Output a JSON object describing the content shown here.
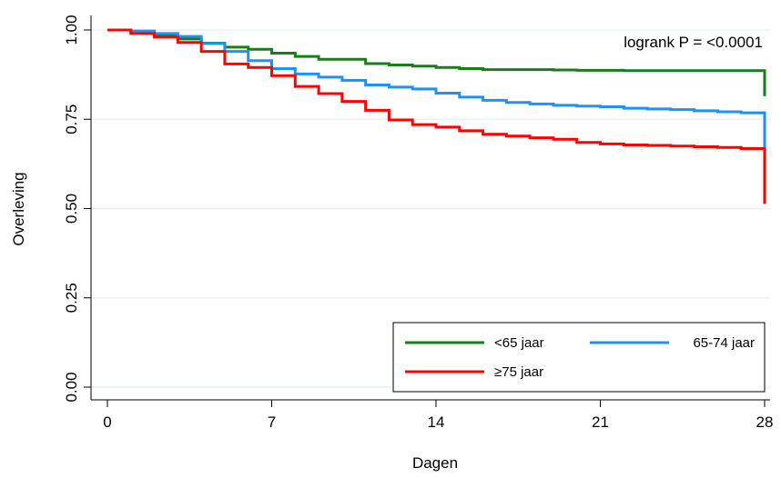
{
  "chart_data": {
    "type": "line",
    "step": true,
    "xlabel": "Dagen",
    "ylabel": "Overleving",
    "xlim": [
      0,
      28
    ],
    "ylim": [
      0,
      1
    ],
    "xticks": [
      0,
      7,
      14,
      21,
      28
    ],
    "xtick_labels": [
      "0",
      "7",
      "14",
      "21",
      "28"
    ],
    "yticks": [
      0,
      0.25,
      0.5,
      0.75,
      1
    ],
    "ytick_labels": [
      "0.00",
      "0.25",
      "0.50",
      "0.75",
      "1.00"
    ],
    "grid": "horizontal",
    "annotation": "logrank P = <0.0001",
    "legend": {
      "placement": "bottom-right",
      "entries": [
        "<65 jaar",
        "65-74 jaar",
        "≥75 jaar"
      ]
    },
    "series": [
      {
        "name": "<65 jaar",
        "color": "#1a7d1a",
        "x": [
          0,
          1,
          2,
          3,
          4,
          5,
          6,
          7,
          8,
          9,
          10,
          11,
          12,
          13,
          14,
          15,
          16,
          17,
          18,
          19,
          20,
          21,
          22,
          23,
          24,
          25,
          26,
          27,
          28,
          28
        ],
        "y": [
          1.0,
          0.995,
          0.985,
          0.975,
          0.963,
          0.952,
          0.946,
          0.935,
          0.926,
          0.918,
          0.918,
          0.906,
          0.902,
          0.899,
          0.895,
          0.892,
          0.889,
          0.889,
          0.889,
          0.888,
          0.887,
          0.887,
          0.886,
          0.886,
          0.886,
          0.886,
          0.886,
          0.886,
          0.885,
          0.815
        ]
      },
      {
        "name": "65-74 jaar",
        "color": "#1e90ff",
        "x": [
          0,
          1,
          2,
          3,
          4,
          5,
          6,
          7,
          8,
          9,
          10,
          11,
          12,
          13,
          14,
          15,
          16,
          17,
          18,
          19,
          20,
          21,
          22,
          23,
          24,
          25,
          26,
          27,
          28,
          28
        ],
        "y": [
          1.0,
          0.997,
          0.99,
          0.982,
          0.962,
          0.94,
          0.914,
          0.892,
          0.877,
          0.868,
          0.859,
          0.846,
          0.84,
          0.835,
          0.823,
          0.812,
          0.803,
          0.797,
          0.793,
          0.789,
          0.787,
          0.785,
          0.781,
          0.779,
          0.777,
          0.774,
          0.771,
          0.768,
          0.766,
          0.668
        ]
      },
      {
        "name": "≥75 jaar",
        "color": "#ff0000",
        "x": [
          0,
          1,
          2,
          3,
          4,
          5,
          6,
          7,
          8,
          9,
          10,
          11,
          12,
          13,
          14,
          15,
          16,
          17,
          18,
          19,
          20,
          21,
          22,
          23,
          24,
          25,
          26,
          27,
          28,
          28
        ],
        "y": [
          1.0,
          0.99,
          0.98,
          0.965,
          0.94,
          0.905,
          0.895,
          0.872,
          0.842,
          0.822,
          0.8,
          0.775,
          0.748,
          0.735,
          0.728,
          0.718,
          0.708,
          0.703,
          0.698,
          0.694,
          0.685,
          0.681,
          0.678,
          0.677,
          0.675,
          0.673,
          0.671,
          0.668,
          0.666,
          0.513
        ]
      }
    ]
  }
}
